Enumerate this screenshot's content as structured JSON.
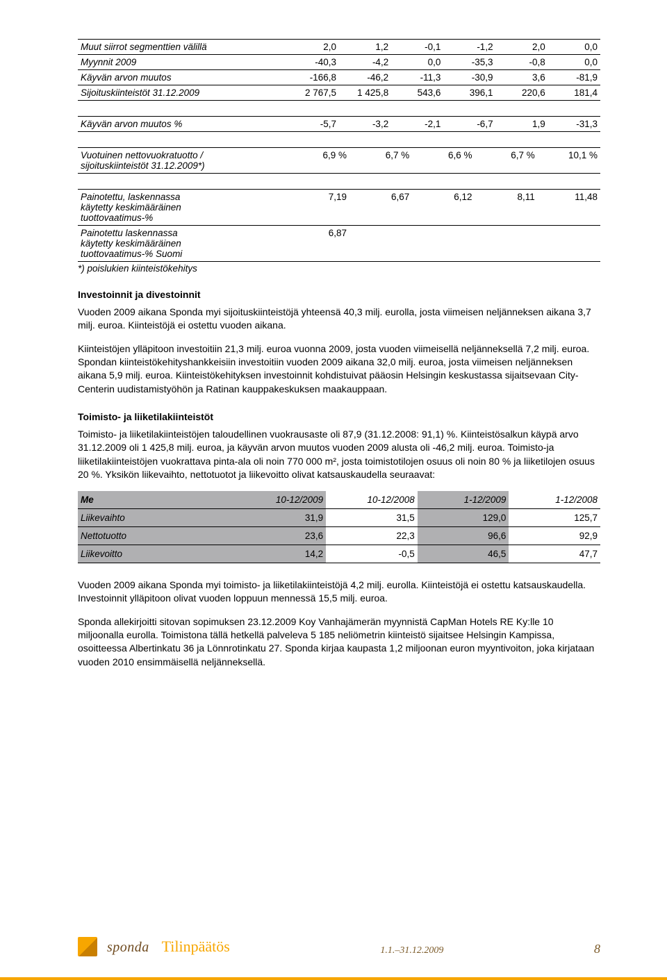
{
  "table1": {
    "rows": [
      {
        "label": "Muut siirrot segmenttien välillä",
        "v": [
          "2,0",
          "1,2",
          "-0,1",
          "-1,2",
          "2,0",
          "0,0"
        ],
        "top": true
      },
      {
        "label": "Myynnit 2009",
        "v": [
          "-40,3",
          "-4,2",
          "0,0",
          "-35,3",
          "-0,8",
          "0,0"
        ],
        "top": true
      },
      {
        "label": "Käyvän arvon muutos",
        "v": [
          "-166,8",
          "-46,2",
          "-11,3",
          "-30,9",
          "3,6",
          "-81,9"
        ],
        "top": true
      },
      {
        "label": "Sijoituskiinteistöt 31.12.2009",
        "v": [
          "2 767,5",
          "1 425,8",
          "543,6",
          "396,1",
          "220,6",
          "181,4"
        ],
        "top": true,
        "bot": true
      }
    ]
  },
  "table2": {
    "row": {
      "label": "Käyvän arvon muutos %",
      "v": [
        "-5,7",
        "-3,2",
        "-2,1",
        "-6,7",
        "1,9",
        "-31,3"
      ]
    }
  },
  "table3": {
    "row": {
      "label_a": "Vuotuinen nettovuokratuotto /",
      "label_b": "sijoituskiinteistöt 31.12.2009*)",
      "v": [
        "6,9 %",
        "6,7 %",
        "6,6 %",
        "6,7 %",
        "10,1 %"
      ]
    }
  },
  "table4": {
    "rows": [
      {
        "label_lines": [
          "Painotettu, laskennassa",
          "käytetty keskimääräinen",
          "tuottovaatimus-%"
        ],
        "v": [
          "7,19",
          "6,67",
          "6,12",
          "8,11",
          "11,48"
        ],
        "top": true
      },
      {
        "label_lines": [
          "Painotettu laskennassa",
          "käytetty keskimääräinen",
          "tuottovaatimus-% Suomi"
        ],
        "v": [
          "6,87",
          "",
          "",
          "",
          ""
        ],
        "top": true,
        "bot": true
      }
    ],
    "note": "*) poislukien kiinteistökehitys"
  },
  "sec1": {
    "title": "Investoinnit ja divestoinnit",
    "p1": "Vuoden 2009 aikana Sponda myi sijoituskiinteistöjä yhteensä 40,3 milj. eurolla, josta viimeisen neljänneksen aikana 3,7 milj. euroa. Kiinteistöjä ei ostettu vuoden aikana.",
    "p2": "Kiinteistöjen ylläpitoon investoitiin 21,3 milj. euroa vuonna 2009, josta vuoden viimeisellä neljänneksellä 7,2 milj. euroa. Spondan kiinteistökehityshankkeisiin investoitiin vuoden 2009 aikana 32,0 milj. euroa, josta viimeisen neljänneksen aikana 5,9 milj. euroa. Kiinteistökehityksen investoinnit kohdistuivat pääosin Helsingin keskustassa sijaitsevaan City-Centerin uudistamistyöhön ja Ratinan kauppakeskuksen maakauppaan."
  },
  "sec2": {
    "title": "Toimisto- ja liiketilakiinteistöt",
    "p1": "Toimisto- ja liiketilakiinteistöjen taloudellinen vuokrausaste oli 87,9 (31.12.2008: 91,1) %. Kiinteistösalkun käypä arvo 31.12.2009 oli 1 425,8 milj. euroa, ja käyvän arvon muutos vuoden 2009 alusta oli -46,2 milj. euroa. Toimisto-ja liiketilakiinteistöjen vuokrattava pinta-ala oli noin 770 000 m², josta toimistotilojen osuus oli noin 80 % ja liiketilojen osuus 20 %. Yksikön liikevaihto, nettotuotot ja liikevoitto olivat katsauskaudella seuraavat:"
  },
  "fin": {
    "head": [
      "Me",
      "10-12/2009",
      "10-12/2008",
      "1-12/2009",
      "1-12/2008"
    ],
    "rows": [
      {
        "label": "Liikevaihto",
        "v": [
          "31,9",
          "31,5",
          "129,0",
          "125,7"
        ]
      },
      {
        "label": "Nettotuotto",
        "v": [
          "23,6",
          "22,3",
          "96,6",
          "92,9"
        ]
      },
      {
        "label": "Liikevoitto",
        "v": [
          "14,2",
          "-0,5",
          "46,5",
          "47,7"
        ]
      }
    ]
  },
  "bottom": {
    "p1": "Vuoden 2009 aikana Sponda myi toimisto- ja liiketilakiinteistöjä 4,2 milj. eurolla. Kiinteistöjä ei ostettu katsauskaudella. Investoinnit ylläpitoon olivat vuoden loppuun mennessä 15,5 milj. euroa.",
    "p2": "Sponda allekirjoitti sitovan sopimuksen 23.12.2009 Koy Vanhajämerän myynnistä CapMan Hotels RE Ky:lle 10 miljoonalla eurolla. Toimistona tällä hetkellä palveleva 5 185 neliömetrin kiinteistö sijaitsee Helsingin Kampissa, osoitteessa Albertinkatu 36 ja Lönnrotinkatu 27. Sponda kirjaa kaupasta 1,2 miljoonan euron myyntivoiton, joka kirjataan vuoden 2010 ensimmäisellä neljänneksellä."
  },
  "footer": {
    "brand": "sponda",
    "word": "Tilinpäätös",
    "range": "1.1.–31.12.2009",
    "page": "8"
  }
}
